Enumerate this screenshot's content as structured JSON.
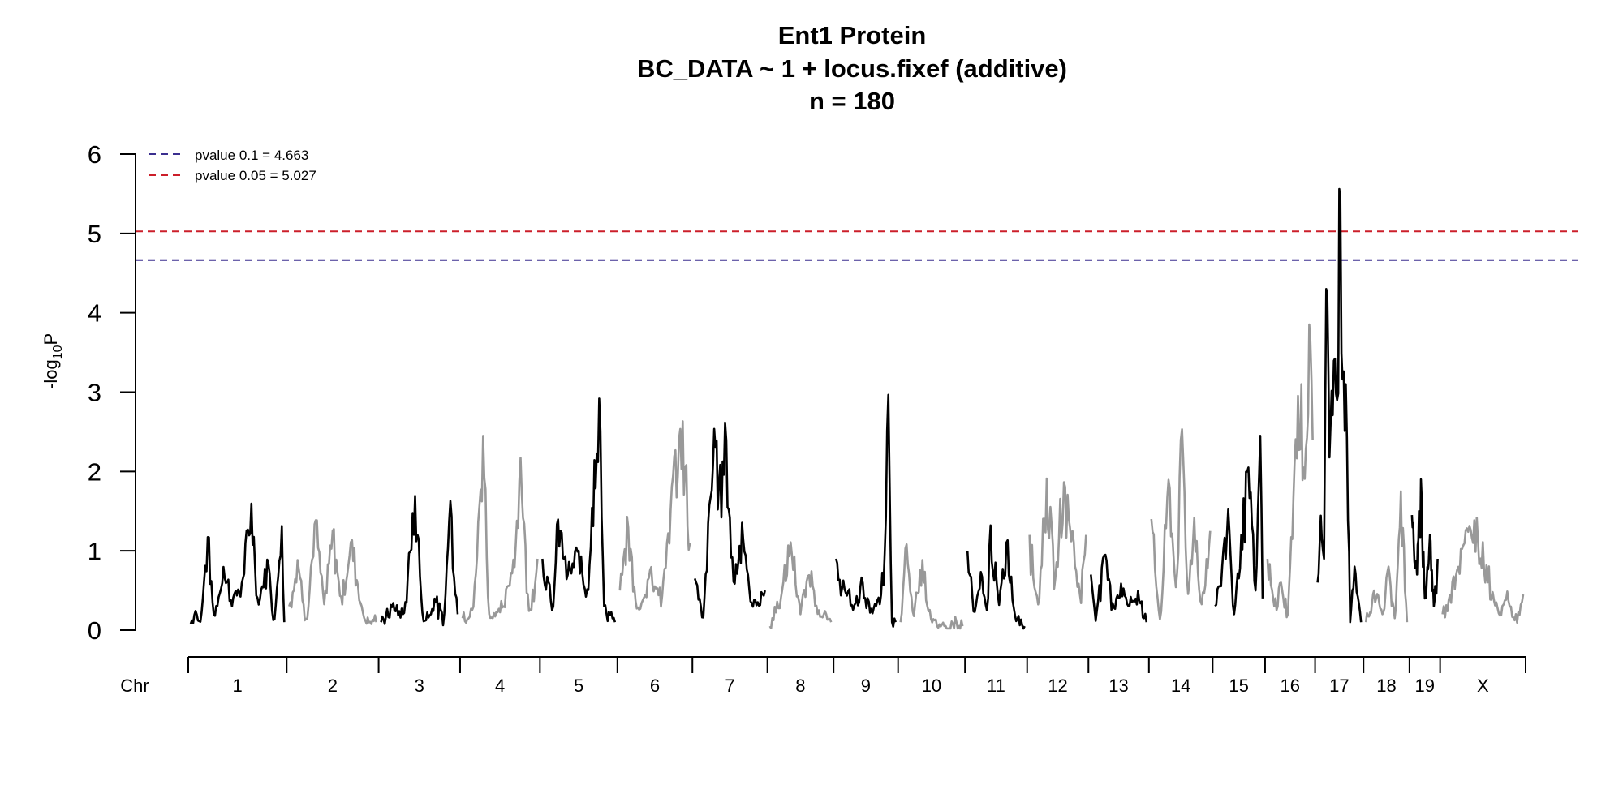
{
  "titles": {
    "line1": "Ent1 Protein",
    "line2": "BC_DATA ~ 1 + locus.fixef (additive)",
    "line3": "n = 180"
  },
  "axes": {
    "ylabel_prefix": "-log",
    "ylabel_sub": "10",
    "ylabel_suffix": "P",
    "chr_label": "Chr"
  },
  "colors": {
    "odd_chr": "#000000",
    "even_chr": "#999999",
    "thr_01": "#3b2f8f",
    "thr_005": "#cc1f2a"
  },
  "chart_data": {
    "type": "line",
    "title": "Ent1 Protein",
    "subtitle": "BC_DATA ~ 1 + locus.fixef (additive)",
    "ylabel": "-log10P",
    "xlabel": "Chr",
    "ylim": [
      0,
      6
    ],
    "yticks": [
      "0",
      "1",
      "2",
      "3",
      "4",
      "5",
      "6"
    ],
    "legend": [
      "pvalue 0.1 = 4.663",
      "pvalue 0.05 = 5.027"
    ],
    "thresholds": [
      {
        "label": "pvalue 0.1 = 4.663",
        "value": 4.663
      },
      {
        "label": "pvalue 0.05 = 5.027",
        "value": 5.027
      }
    ],
    "chromosomes": [
      {
        "name": "1",
        "peaks": [
          [
            0,
            0.08
          ],
          [
            0.05,
            0.25
          ],
          [
            0.1,
            0.05
          ],
          [
            0.18,
            1.2
          ],
          [
            0.25,
            0.15
          ],
          [
            0.35,
            0.8
          ],
          [
            0.45,
            0.4
          ],
          [
            0.55,
            0.6
          ],
          [
            0.65,
            1.6
          ],
          [
            0.72,
            0.3
          ],
          [
            0.82,
            0.9
          ],
          [
            0.9,
            0.1
          ],
          [
            0.97,
            1.5
          ],
          [
            1,
            0.1
          ]
        ]
      },
      {
        "name": "2",
        "peaks": [
          [
            0,
            0.3
          ],
          [
            0.1,
            0.9
          ],
          [
            0.2,
            0.1
          ],
          [
            0.3,
            1.45
          ],
          [
            0.4,
            0.3
          ],
          [
            0.5,
            1.25
          ],
          [
            0.6,
            0.4
          ],
          [
            0.72,
            1.15
          ],
          [
            0.85,
            0.2
          ],
          [
            1,
            0.1
          ]
        ]
      },
      {
        "name": "3",
        "peaks": [
          [
            0,
            0.1
          ],
          [
            0.15,
            0.3
          ],
          [
            0.3,
            0.2
          ],
          [
            0.45,
            1.75
          ],
          [
            0.55,
            0.1
          ],
          [
            0.7,
            0.4
          ],
          [
            0.82,
            0.1
          ],
          [
            0.9,
            1.7
          ],
          [
            1,
            0.2
          ]
        ]
      },
      {
        "name": "4",
        "peaks": [
          [
            0,
            0.15
          ],
          [
            0.15,
            0.3
          ],
          [
            0.28,
            2.55
          ],
          [
            0.35,
            0.2
          ],
          [
            0.55,
            0.3
          ],
          [
            0.68,
            0.9
          ],
          [
            0.78,
            2.25
          ],
          [
            0.88,
            0.2
          ],
          [
            1,
            0.9
          ]
        ]
      },
      {
        "name": "5",
        "peaks": [
          [
            0,
            0.9
          ],
          [
            0.15,
            0.3
          ],
          [
            0.22,
            1.45
          ],
          [
            0.35,
            0.7
          ],
          [
            0.5,
            1.0
          ],
          [
            0.62,
            0.5
          ],
          [
            0.72,
            2.2
          ],
          [
            0.78,
            3.05
          ],
          [
            0.85,
            0.3
          ],
          [
            1,
            0.1
          ]
        ]
      },
      {
        "name": "6",
        "peaks": [
          [
            0,
            0.5
          ],
          [
            0.12,
            1.3
          ],
          [
            0.25,
            0.2
          ],
          [
            0.45,
            0.8
          ],
          [
            0.6,
            0.4
          ],
          [
            0.75,
            1.9
          ],
          [
            0.9,
            2.65
          ],
          [
            1,
            1.1
          ]
        ]
      },
      {
        "name": "7",
        "peaks": [
          [
            0,
            0.65
          ],
          [
            0.12,
            0.15
          ],
          [
            0.28,
            2.6
          ],
          [
            0.35,
            1.8
          ],
          [
            0.45,
            2.4
          ],
          [
            0.55,
            0.6
          ],
          [
            0.68,
            1.4
          ],
          [
            0.8,
            0.3
          ],
          [
            1,
            0.5
          ]
        ]
      },
      {
        "name": "8",
        "peaks": [
          [
            0,
            0.05
          ],
          [
            0.2,
            0.5
          ],
          [
            0.35,
            1.15
          ],
          [
            0.5,
            0.2
          ],
          [
            0.65,
            0.8
          ],
          [
            0.8,
            0.25
          ],
          [
            1,
            0.1
          ]
        ]
      },
      {
        "name": "9",
        "peaks": [
          [
            0,
            0.9
          ],
          [
            0.15,
            0.5
          ],
          [
            0.3,
            0.3
          ],
          [
            0.45,
            0.6
          ],
          [
            0.6,
            0.25
          ],
          [
            0.75,
            0.4
          ],
          [
            0.82,
            1.0
          ],
          [
            0.88,
            3.05
          ],
          [
            0.93,
            0.1
          ],
          [
            1,
            0.1
          ]
        ]
      },
      {
        "name": "10",
        "peaks": [
          [
            0,
            0.1
          ],
          [
            0.1,
            1.1
          ],
          [
            0.2,
            0.2
          ],
          [
            0.35,
            0.9
          ],
          [
            0.5,
            0.1
          ],
          [
            0.7,
            0.05
          ],
          [
            0.9,
            0.1
          ],
          [
            1,
            0.05
          ]
        ]
      },
      {
        "name": "11",
        "peaks": [
          [
            0,
            1.0
          ],
          [
            0.12,
            0.2
          ],
          [
            0.25,
            0.7
          ],
          [
            0.35,
            0.2
          ],
          [
            0.4,
            1.35
          ],
          [
            0.55,
            0.3
          ],
          [
            0.7,
            1.15
          ],
          [
            0.82,
            0.2
          ],
          [
            1,
            0.05
          ]
        ]
      },
      {
        "name": "12",
        "peaks": [
          [
            0,
            1.2
          ],
          [
            0.15,
            0.3
          ],
          [
            0.3,
            1.95
          ],
          [
            0.45,
            0.6
          ],
          [
            0.6,
            1.9
          ],
          [
            0.75,
            1.3
          ],
          [
            0.9,
            0.4
          ],
          [
            1,
            1.2
          ]
        ]
      },
      {
        "name": "13",
        "peaks": [
          [
            0,
            0.7
          ],
          [
            0.1,
            0.2
          ],
          [
            0.25,
            1.0
          ],
          [
            0.4,
            0.3
          ],
          [
            0.55,
            0.6
          ],
          [
            0.7,
            0.3
          ],
          [
            0.85,
            0.5
          ],
          [
            1,
            0.1
          ]
        ]
      },
      {
        "name": "14",
        "peaks": [
          [
            0,
            1.4
          ],
          [
            0.15,
            0.1
          ],
          [
            0.3,
            2.0
          ],
          [
            0.42,
            0.5
          ],
          [
            0.52,
            2.55
          ],
          [
            0.62,
            0.4
          ],
          [
            0.72,
            1.5
          ],
          [
            0.85,
            0.3
          ],
          [
            1,
            1.25
          ]
        ]
      },
      {
        "name": "15",
        "peaks": [
          [
            0,
            0.3
          ],
          [
            0.15,
            0.8
          ],
          [
            0.28,
            1.55
          ],
          [
            0.4,
            0.2
          ],
          [
            0.55,
            1.2
          ],
          [
            0.7,
            2.05
          ],
          [
            0.85,
            0.5
          ],
          [
            0.95,
            2.45
          ],
          [
            1,
            0.4
          ]
        ]
      },
      {
        "name": "16",
        "peaks": [
          [
            0,
            0.9
          ],
          [
            0.15,
            0.3
          ],
          [
            0.3,
            0.6
          ],
          [
            0.45,
            0.2
          ],
          [
            0.6,
            2.1
          ],
          [
            0.75,
            3.1
          ],
          [
            0.82,
            1.8
          ],
          [
            0.92,
            3.95
          ],
          [
            1,
            2.4
          ]
        ]
      },
      {
        "name": "17",
        "peaks": [
          [
            0,
            0.6
          ],
          [
            0.08,
            1.5
          ],
          [
            0.15,
            0.9
          ],
          [
            0.2,
            4.3
          ],
          [
            0.3,
            2.6
          ],
          [
            0.38,
            3.45
          ],
          [
            0.45,
            2.9
          ],
          [
            0.5,
            5.56
          ],
          [
            0.58,
            3.0
          ],
          [
            0.65,
            3.1
          ],
          [
            0.75,
            0.1
          ],
          [
            0.85,
            0.8
          ],
          [
            1,
            0.1
          ]
        ]
      },
      {
        "name": "18",
        "peaks": [
          [
            0,
            0.1
          ],
          [
            0.2,
            0.5
          ],
          [
            0.4,
            0.2
          ],
          [
            0.55,
            0.8
          ],
          [
            0.7,
            0.15
          ],
          [
            0.85,
            1.75
          ],
          [
            1,
            0.1
          ]
        ]
      },
      {
        "name": "19",
        "peaks": [
          [
            0,
            1.45
          ],
          [
            0.2,
            0.7
          ],
          [
            0.35,
            1.9
          ],
          [
            0.5,
            0.4
          ],
          [
            0.7,
            1.2
          ],
          [
            0.85,
            0.3
          ],
          [
            1,
            0.9
          ]
        ]
      },
      {
        "name": "X",
        "peaks": [
          [
            0,
            0.2
          ],
          [
            0.12,
            0.6
          ],
          [
            0.25,
            1.05
          ],
          [
            0.4,
            1.4
          ],
          [
            0.55,
            0.8
          ],
          [
            0.7,
            0.2
          ],
          [
            0.8,
            0.5
          ],
          [
            0.9,
            0.1
          ],
          [
            1,
            0.45
          ]
        ]
      }
    ]
  }
}
